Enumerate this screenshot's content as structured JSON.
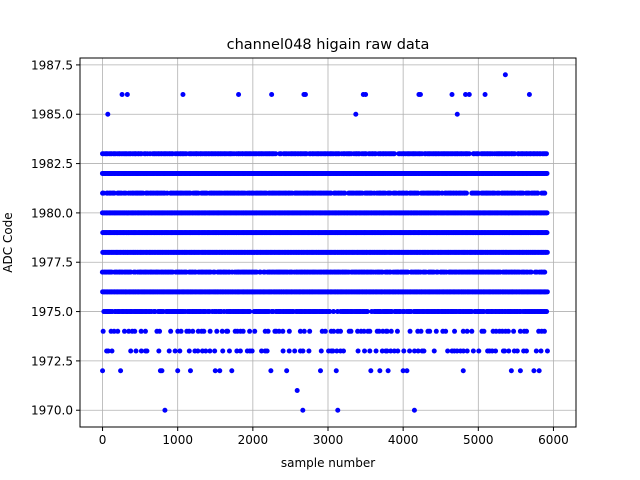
{
  "chart_data": {
    "type": "scatter",
    "title": "channel048 higain raw data",
    "xlabel": "sample number",
    "ylabel": "ADC Code",
    "xlim": [
      -300,
      6300
    ],
    "ylim": [
      1969.15,
      1987.85
    ],
    "x_ticks": [
      0,
      1000,
      2000,
      3000,
      4000,
      5000,
      6000
    ],
    "y_ticks": [
      1970.0,
      1972.5,
      1975.0,
      1977.5,
      1980.0,
      1982.5,
      1985.0,
      1987.5
    ],
    "x_tick_labels": [
      "0",
      "1000",
      "2000",
      "3000",
      "4000",
      "5000",
      "6000"
    ],
    "y_tick_labels": [
      "1970.0",
      "1972.5",
      "1975.0",
      "1977.5",
      "1980.0",
      "1982.5",
      "1985.0",
      "1987.5"
    ],
    "grid": true,
    "marker_color": "#0000ff",
    "sample_range": [
      0,
      5920
    ],
    "dense_levels": [
      1976,
      1978,
      1979,
      1980,
      1982
    ],
    "mid_levels": [
      1975,
      1977,
      1981,
      1983
    ],
    "sparse_levels": [
      1973,
      1974
    ],
    "outlier_points": [
      {
        "x": 830,
        "y": 1970
      },
      {
        "x": 2665,
        "y": 1970
      },
      {
        "x": 3130,
        "y": 1970
      },
      {
        "x": 4150,
        "y": 1970
      },
      {
        "x": 2590,
        "y": 1971
      },
      {
        "x": 0,
        "y": 1972
      },
      {
        "x": 240,
        "y": 1972
      },
      {
        "x": 770,
        "y": 1972
      },
      {
        "x": 790,
        "y": 1972
      },
      {
        "x": 1000,
        "y": 1972
      },
      {
        "x": 1170,
        "y": 1972
      },
      {
        "x": 1500,
        "y": 1972
      },
      {
        "x": 1560,
        "y": 1972
      },
      {
        "x": 1720,
        "y": 1972
      },
      {
        "x": 2240,
        "y": 1972
      },
      {
        "x": 2450,
        "y": 1972
      },
      {
        "x": 2900,
        "y": 1972
      },
      {
        "x": 3110,
        "y": 1972
      },
      {
        "x": 3570,
        "y": 1972
      },
      {
        "x": 3690,
        "y": 1972
      },
      {
        "x": 3800,
        "y": 1972
      },
      {
        "x": 4000,
        "y": 1972
      },
      {
        "x": 4050,
        "y": 1972
      },
      {
        "x": 4800,
        "y": 1972
      },
      {
        "x": 5440,
        "y": 1972
      },
      {
        "x": 5560,
        "y": 1972
      },
      {
        "x": 5740,
        "y": 1972
      },
      {
        "x": 5810,
        "y": 1972
      },
      {
        "x": 70,
        "y": 1985
      },
      {
        "x": 3370,
        "y": 1985
      },
      {
        "x": 4720,
        "y": 1985
      },
      {
        "x": 260,
        "y": 1986
      },
      {
        "x": 330,
        "y": 1986
      },
      {
        "x": 1070,
        "y": 1986
      },
      {
        "x": 1810,
        "y": 1986
      },
      {
        "x": 2250,
        "y": 1986
      },
      {
        "x": 2680,
        "y": 1986
      },
      {
        "x": 2700,
        "y": 1986
      },
      {
        "x": 3470,
        "y": 1986
      },
      {
        "x": 3500,
        "y": 1986
      },
      {
        "x": 4210,
        "y": 1986
      },
      {
        "x": 4230,
        "y": 1986
      },
      {
        "x": 4650,
        "y": 1986
      },
      {
        "x": 4830,
        "y": 1986
      },
      {
        "x": 4880,
        "y": 1986
      },
      {
        "x": 5090,
        "y": 1986
      },
      {
        "x": 5680,
        "y": 1986
      },
      {
        "x": 5360,
        "y": 1987
      }
    ]
  }
}
